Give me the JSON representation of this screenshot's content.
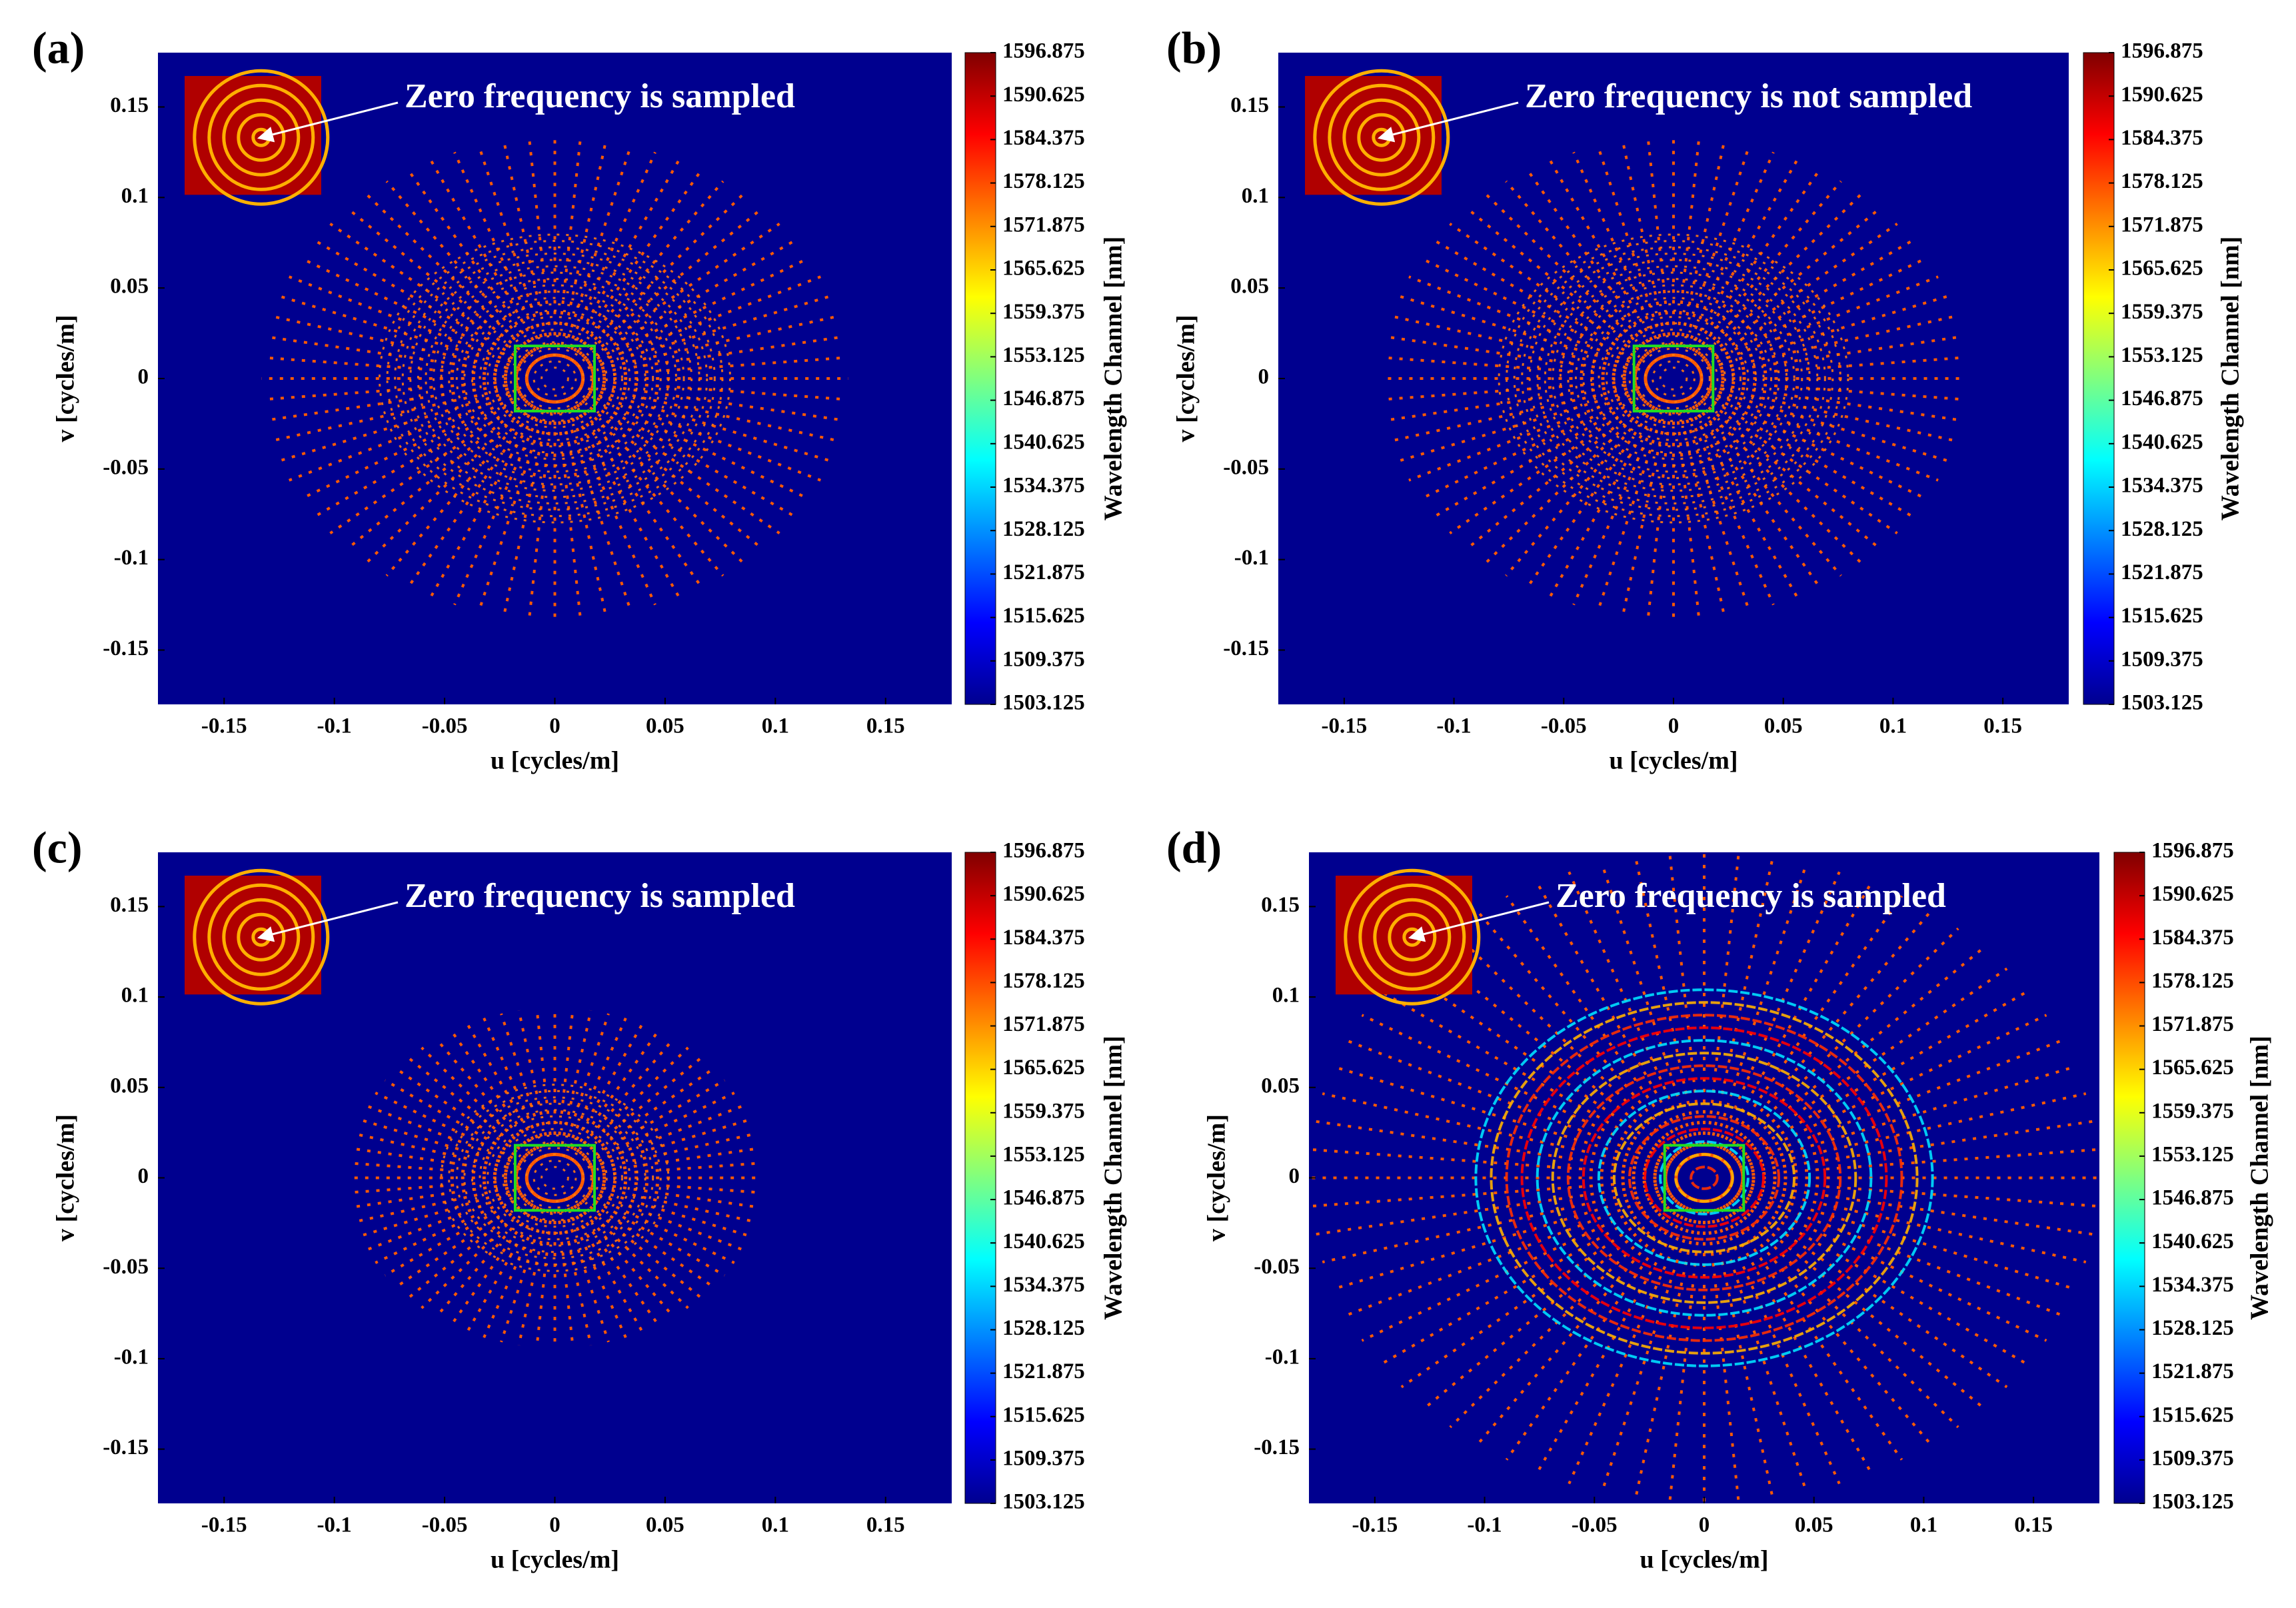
{
  "chart_data": [
    {
      "type": "scatter",
      "panel_label": "(a)",
      "annotation": "Zero frequency is sampled",
      "xlabel": "u [cycles/m]",
      "ylabel": "v [cycles/m]",
      "xlim": [
        -0.18,
        0.18
      ],
      "ylim": [
        -0.18,
        0.18
      ],
      "xticks": [
        -0.15,
        -0.1,
        -0.05,
        0,
        0.05,
        0.1,
        0.15
      ],
      "yticks": [
        -0.15,
        -0.1,
        -0.05,
        0,
        0.05,
        0.1,
        0.15
      ],
      "colorbar": {
        "label": "Wavelength Channel [nm]",
        "lim": [
          1503.125,
          1596.875
        ],
        "ticks": [
          1503.125,
          1509.375,
          1515.625,
          1521.875,
          1528.125,
          1534.375,
          1540.625,
          1546.875,
          1553.125,
          1559.375,
          1565.625,
          1571.875,
          1578.125,
          1584.375,
          1590.625,
          1596.875
        ]
      }
    },
    {
      "type": "scatter",
      "panel_label": "(b)",
      "annotation": "Zero frequency is not sampled",
      "xlabel": "u [cycles/m]",
      "ylabel": "v [cycles/m]",
      "xlim": [
        -0.18,
        0.18
      ],
      "ylim": [
        -0.18,
        0.18
      ],
      "xticks": [
        -0.15,
        -0.1,
        -0.05,
        0,
        0.05,
        0.1,
        0.15
      ],
      "yticks": [
        -0.15,
        -0.1,
        -0.05,
        0,
        0.05,
        0.1,
        0.15
      ],
      "colorbar": {
        "label": "Wavelength Channel [nm]",
        "lim": [
          1503.125,
          1596.875
        ],
        "ticks": [
          1503.125,
          1509.375,
          1515.625,
          1521.875,
          1528.125,
          1534.375,
          1540.625,
          1546.875,
          1553.125,
          1559.375,
          1565.625,
          1571.875,
          1578.125,
          1584.375,
          1590.625,
          1596.875
        ]
      }
    },
    {
      "type": "scatter",
      "panel_label": "(c)",
      "annotation": "Zero frequency is sampled",
      "xlabel": "u [cycles/m]",
      "ylabel": "v [cycles/m]",
      "xlim": [
        -0.18,
        0.18
      ],
      "ylim": [
        -0.18,
        0.18
      ],
      "xticks": [
        -0.15,
        -0.1,
        -0.05,
        0,
        0.05,
        0.1,
        0.15
      ],
      "yticks": [
        -0.15,
        -0.1,
        -0.05,
        0,
        0.05,
        0.1,
        0.15
      ],
      "colorbar": {
        "label": "Wavelength Channel [nm]",
        "lim": [
          1503.125,
          1596.875
        ],
        "ticks": [
          1503.125,
          1509.375,
          1515.625,
          1521.875,
          1528.125,
          1534.375,
          1540.625,
          1546.875,
          1553.125,
          1559.375,
          1565.625,
          1571.875,
          1578.125,
          1584.375,
          1590.625,
          1596.875
        ]
      }
    },
    {
      "type": "scatter",
      "panel_label": "(d)",
      "annotation": "Zero frequency is sampled",
      "xlabel": "u [cycles/m]",
      "ylabel": "v [cycles/m]",
      "xlim": [
        -0.18,
        0.18
      ],
      "ylim": [
        -0.18,
        0.18
      ],
      "xticks": [
        -0.15,
        -0.1,
        -0.05,
        0,
        0.05,
        0.1,
        0.15
      ],
      "yticks": [
        -0.15,
        -0.1,
        -0.05,
        0,
        0.05,
        0.1,
        0.15
      ],
      "colorbar": {
        "label": "Wavelength Channel [nm]",
        "lim": [
          1503.125,
          1596.875
        ],
        "ticks": [
          1503.125,
          1509.375,
          1515.625,
          1521.875,
          1528.125,
          1534.375,
          1540.625,
          1546.875,
          1553.125,
          1559.375,
          1565.625,
          1571.875,
          1578.125,
          1584.375,
          1590.625,
          1596.875
        ]
      }
    }
  ]
}
